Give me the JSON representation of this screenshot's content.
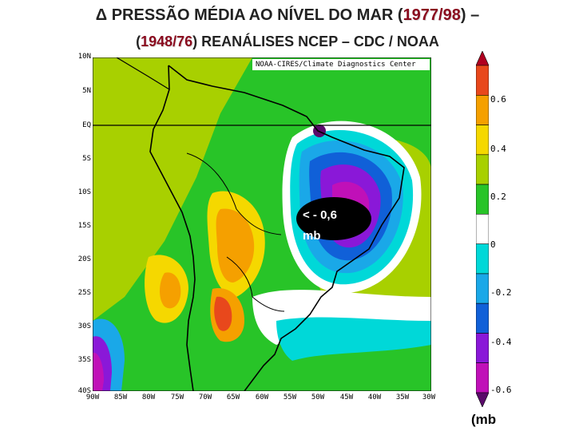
{
  "title": {
    "line1_prefix": "Δ PRESSÃO MÉDIA AO NÍVEL DO MAR (",
    "line1_year": "1977/98",
    "line1_suffix": ") –",
    "line2_prefix": "(",
    "line2_year": "1948/76",
    "line2_suffix": ") REANÁLISES NCEP – CDC / NOAA"
  },
  "credit": "NOAA-CIRES/Climate Diagnostics Center",
  "lat_labels": [
    "10N",
    "5N",
    "EQ",
    "5S",
    "10S",
    "15S",
    "20S",
    "25S",
    "30S",
    "35S",
    "40S"
  ],
  "lon_labels": [
    "90W",
    "85W",
    "80W",
    "75W",
    "70W",
    "65W",
    "60W",
    "55W",
    "50W",
    "45W",
    "40W",
    "35W",
    "30W"
  ],
  "callout": {
    "line1": "< - 0,6",
    "line2": "mb"
  },
  "colorbar": {
    "labels": [
      "0.6",
      "0.4",
      "0.2",
      "0",
      "-0.2",
      "-0.4",
      "-0.6"
    ],
    "colors": [
      "#b00020",
      "#e8481c",
      "#f5a000",
      "#f5d800",
      "#a8d000",
      "#28c428",
      "#ffffff",
      "#00d8d8",
      "#1aa8e8",
      "#1060d8",
      "#8a18d8",
      "#c010b8",
      "#5a0a6a"
    ]
  },
  "unit": "(mb"
}
